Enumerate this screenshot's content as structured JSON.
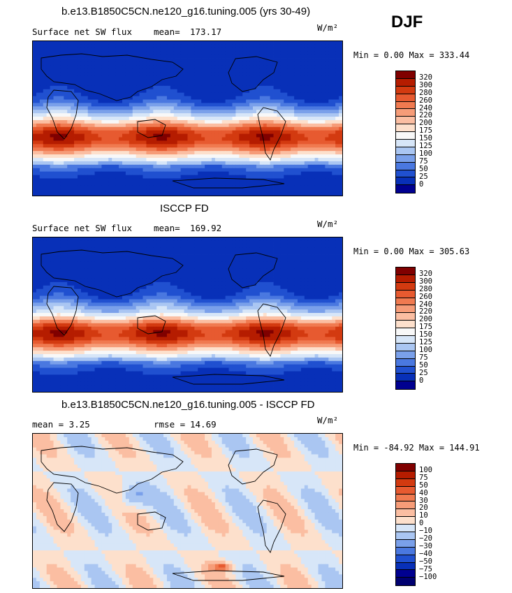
{
  "season": "DJF",
  "panels": [
    {
      "title": "b.e13.B1850C5CN.ne120_g16.tuning.005 (yrs 30-49)",
      "left_label": "Surface net SW flux",
      "stat_label": "mean=",
      "stat_value": "173.17",
      "units": "W/m²",
      "minmax": "Min =   0.00 Max = 333.44",
      "kind": "model"
    },
    {
      "title": "ISCCP FD",
      "left_label": "Surface net SW flux",
      "stat_label": "mean=",
      "stat_value": "169.92",
      "units": "W/m²",
      "minmax": "Min =   0.00 Max = 305.63",
      "kind": "obs"
    },
    {
      "title": "b.e13.B1850C5CN.ne120_g16.tuning.005 - ISCCP FD",
      "left_label": "mean =   3.25",
      "stat_label": "rmse =",
      "stat_value": "14.69",
      "units": "W/m²",
      "minmax": "Min = -84.92 Max = 144.91",
      "kind": "diff"
    }
  ],
  "colorbars": {
    "absolute": {
      "labels": [
        "320",
        "300",
        "280",
        "260",
        "240",
        "220",
        "200",
        "175",
        "150",
        "125",
        "100",
        "75",
        "50",
        "25",
        "0"
      ],
      "colors": [
        "#800000",
        "#b51c00",
        "#d33a10",
        "#e75a30",
        "#f07a50",
        "#f69c78",
        "#fbbea2",
        "#fde0cc",
        "#f8f8f8",
        "#d7e6f8",
        "#aac6f2",
        "#7aa0ea",
        "#4a78e0",
        "#2050d0",
        "#0830b8",
        "#000090"
      ]
    },
    "difference": {
      "labels": [
        "100",
        "75",
        "50",
        "40",
        "30",
        "20",
        "10",
        "0",
        "-10",
        "-20",
        "-30",
        "-40",
        "-50",
        "-75",
        "-100"
      ],
      "colors": [
        "#800000",
        "#b51c00",
        "#d33a10",
        "#e75a30",
        "#f07a50",
        "#f69c78",
        "#fbbea2",
        "#fde0cc",
        "#d7e6f8",
        "#aac6f2",
        "#7aa0ea",
        "#4a78e0",
        "#2050d0",
        "#0830b8",
        "#000090",
        "#000070"
      ]
    }
  },
  "chart_data": [
    {
      "type": "heatmap",
      "title": "b.e13.B1850C5CN.ne120_g16.tuning.005 (yrs 30-49)",
      "variable": "Surface net SW flux",
      "units": "W/m²",
      "mean": 173.17,
      "min": 0.0,
      "max": 333.44,
      "levels": [
        0,
        25,
        50,
        75,
        100,
        125,
        150,
        175,
        200,
        220,
        240,
        260,
        280,
        300,
        320
      ]
    },
    {
      "type": "heatmap",
      "title": "ISCCP FD",
      "variable": "Surface net SW flux",
      "units": "W/m²",
      "mean": 169.92,
      "min": 0.0,
      "max": 305.63,
      "levels": [
        0,
        25,
        50,
        75,
        100,
        125,
        150,
        175,
        200,
        220,
        240,
        260,
        280,
        300,
        320
      ]
    },
    {
      "type": "heatmap",
      "title": "b.e13.B1850C5CN.ne120_g16.tuning.005 - ISCCP FD",
      "units": "W/m²",
      "mean": 3.25,
      "rmse": 14.69,
      "min": -84.92,
      "max": 144.91,
      "levels": [
        -100,
        -75,
        -50,
        -40,
        -30,
        -20,
        -10,
        0,
        10,
        20,
        30,
        40,
        50,
        75,
        100
      ]
    }
  ]
}
